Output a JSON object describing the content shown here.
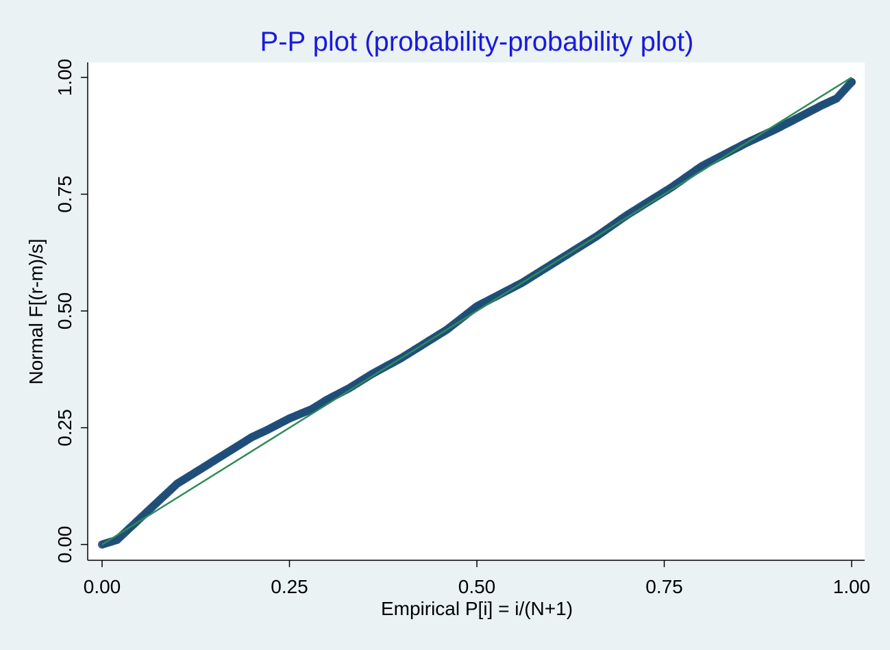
{
  "chart_data": {
    "type": "scatter",
    "title": "P-P plot (probability-probability plot)",
    "xlabel": "Empirical P[i] = i/(N+1)",
    "ylabel": "Normal F[(r-m)/s]",
    "xlim": [
      0,
      1
    ],
    "ylim": [
      0,
      1
    ],
    "xticks": [
      0,
      0.25,
      0.5,
      0.75,
      1
    ],
    "yticks": [
      0,
      0.25,
      0.5,
      0.75,
      1
    ],
    "xtick_labels": [
      "0.00",
      "0.25",
      "0.50",
      "0.75",
      "1.00"
    ],
    "ytick_labels": [
      "0.00",
      "0.25",
      "0.50",
      "0.75",
      "1.00"
    ],
    "grid": false,
    "legend": "none",
    "colors": {
      "title": "#1a1adb",
      "points": "#1f4e79",
      "reference_line": "#2e8b57",
      "plot_background": "#ffffff",
      "page_background": "#eaf2f3"
    },
    "series": [
      {
        "kind": "points",
        "x": [
          0.0,
          0.02,
          0.04,
          0.06,
          0.08,
          0.1,
          0.12,
          0.15,
          0.18,
          0.2,
          0.22,
          0.25,
          0.28,
          0.3,
          0.33,
          0.36,
          0.4,
          0.43,
          0.46,
          0.5,
          0.53,
          0.56,
          0.6,
          0.63,
          0.66,
          0.7,
          0.73,
          0.76,
          0.8,
          0.83,
          0.86,
          0.9,
          0.93,
          0.96,
          0.98,
          1.0
        ],
        "y": [
          0.0,
          0.01,
          0.04,
          0.07,
          0.1,
          0.13,
          0.15,
          0.18,
          0.21,
          0.23,
          0.245,
          0.27,
          0.29,
          0.31,
          0.335,
          0.365,
          0.4,
          0.43,
          0.46,
          0.51,
          0.535,
          0.56,
          0.6,
          0.63,
          0.66,
          0.705,
          0.735,
          0.765,
          0.81,
          0.835,
          0.86,
          0.89,
          0.915,
          0.94,
          0.955,
          0.99
        ]
      },
      {
        "kind": "reference_line",
        "x": [
          0,
          1
        ],
        "y": [
          0,
          1
        ]
      }
    ]
  }
}
